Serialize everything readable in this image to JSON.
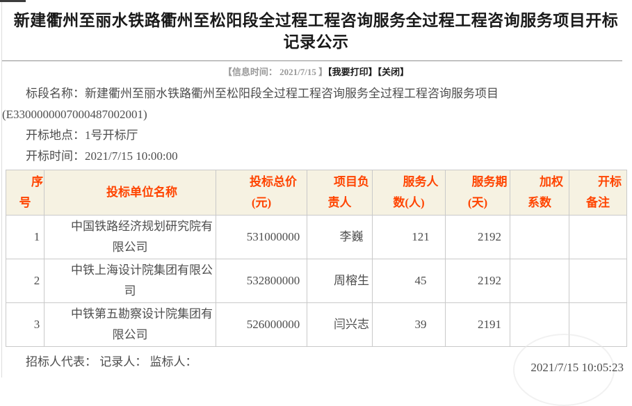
{
  "header": {
    "title": "新建衢州至丽水铁路衢州至松阳段全过程工程咨询服务全过程工程咨询服务项目开标记录公示",
    "info_time": "【信息时间： 2021/7/15 】",
    "print_label": "【我要打印】",
    "close_label": "【关闭】"
  },
  "details": {
    "section_name": "标段名称：新建衢州至丽水铁路衢州至松阳段全过程工程咨询服务全过程工程咨询服务项目(E3300000007000487002001)",
    "location": "开标地点：1号开标厅",
    "time": "开标时间：2021/7/15 10:00:00"
  },
  "table": {
    "headers": [
      "序号",
      "投标单位名称",
      "投标总价(元)",
      "项目负责人",
      "服务人数(人)",
      "服务期(天)",
      "加权系数",
      "开标备注"
    ],
    "rows": [
      [
        "1",
        "中国铁路经济规划研究院有限公司",
        "531000000",
        "李巍",
        "121",
        "2192",
        "",
        ""
      ],
      [
        "2",
        "中铁上海设计院集团有限公司",
        "532800000",
        "周榕生",
        "45",
        "2192",
        "",
        ""
      ],
      [
        "3",
        "中铁第五勘察设计院集团有限公司",
        "526000000",
        "闫兴志",
        "39",
        "2191",
        "",
        ""
      ]
    ]
  },
  "footer": {
    "signers": "招标人代表： 记录人： 监标人：",
    "timestamp": "2021/7/15 10:05:23"
  },
  "colors": {
    "header_text": "#ff4400",
    "header_background": "#f6f2e2",
    "table_border": "#c9c9c9",
    "body_text": "#4d4d4d",
    "title_text": "#1a1a1a",
    "info_time_text": "#999999"
  }
}
